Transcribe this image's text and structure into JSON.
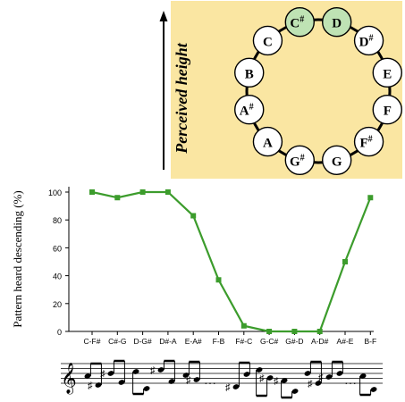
{
  "clock": {
    "axis_label": "Perceived height",
    "notes": [
      {
        "letter": "C",
        "accidental": "#",
        "highlight": true
      },
      {
        "letter": "D",
        "accidental": "",
        "highlight": true
      },
      {
        "letter": "D",
        "accidental": "#",
        "highlight": false
      },
      {
        "letter": "E",
        "accidental": "",
        "highlight": false
      },
      {
        "letter": "F",
        "accidental": "",
        "highlight": false
      },
      {
        "letter": "F",
        "accidental": "#",
        "highlight": false
      },
      {
        "letter": "G",
        "accidental": "",
        "highlight": false
      },
      {
        "letter": "G",
        "accidental": "#",
        "highlight": false
      },
      {
        "letter": "A",
        "accidental": "",
        "highlight": false
      },
      {
        "letter": "A",
        "accidental": "#",
        "highlight": false
      },
      {
        "letter": "B",
        "accidental": "",
        "highlight": false
      },
      {
        "letter": "C",
        "accidental": "",
        "highlight": false
      }
    ],
    "colors": {
      "panel": "#fae6a2",
      "highlight": "#bfe3b4",
      "node": "#ffffff"
    }
  },
  "chart_data": {
    "type": "line",
    "categories": [
      "C-F#",
      "C#-G",
      "D-G#",
      "D#-A",
      "E-A#",
      "F-B",
      "F#-C",
      "G-C#",
      "G#-D",
      "A-D#",
      "A#-E",
      "B-F"
    ],
    "values": [
      100,
      96,
      100,
      100,
      83,
      37,
      4,
      0,
      0,
      0,
      50,
      96
    ],
    "ylabel": "Pattern heard descending (%)",
    "xlabel": "",
    "ylim": [
      0,
      100
    ],
    "yticks": [
      0,
      20,
      40,
      60,
      80,
      100
    ],
    "color": "#3c9c2c",
    "grid": false
  },
  "notation": {
    "ellipsis": "…"
  }
}
